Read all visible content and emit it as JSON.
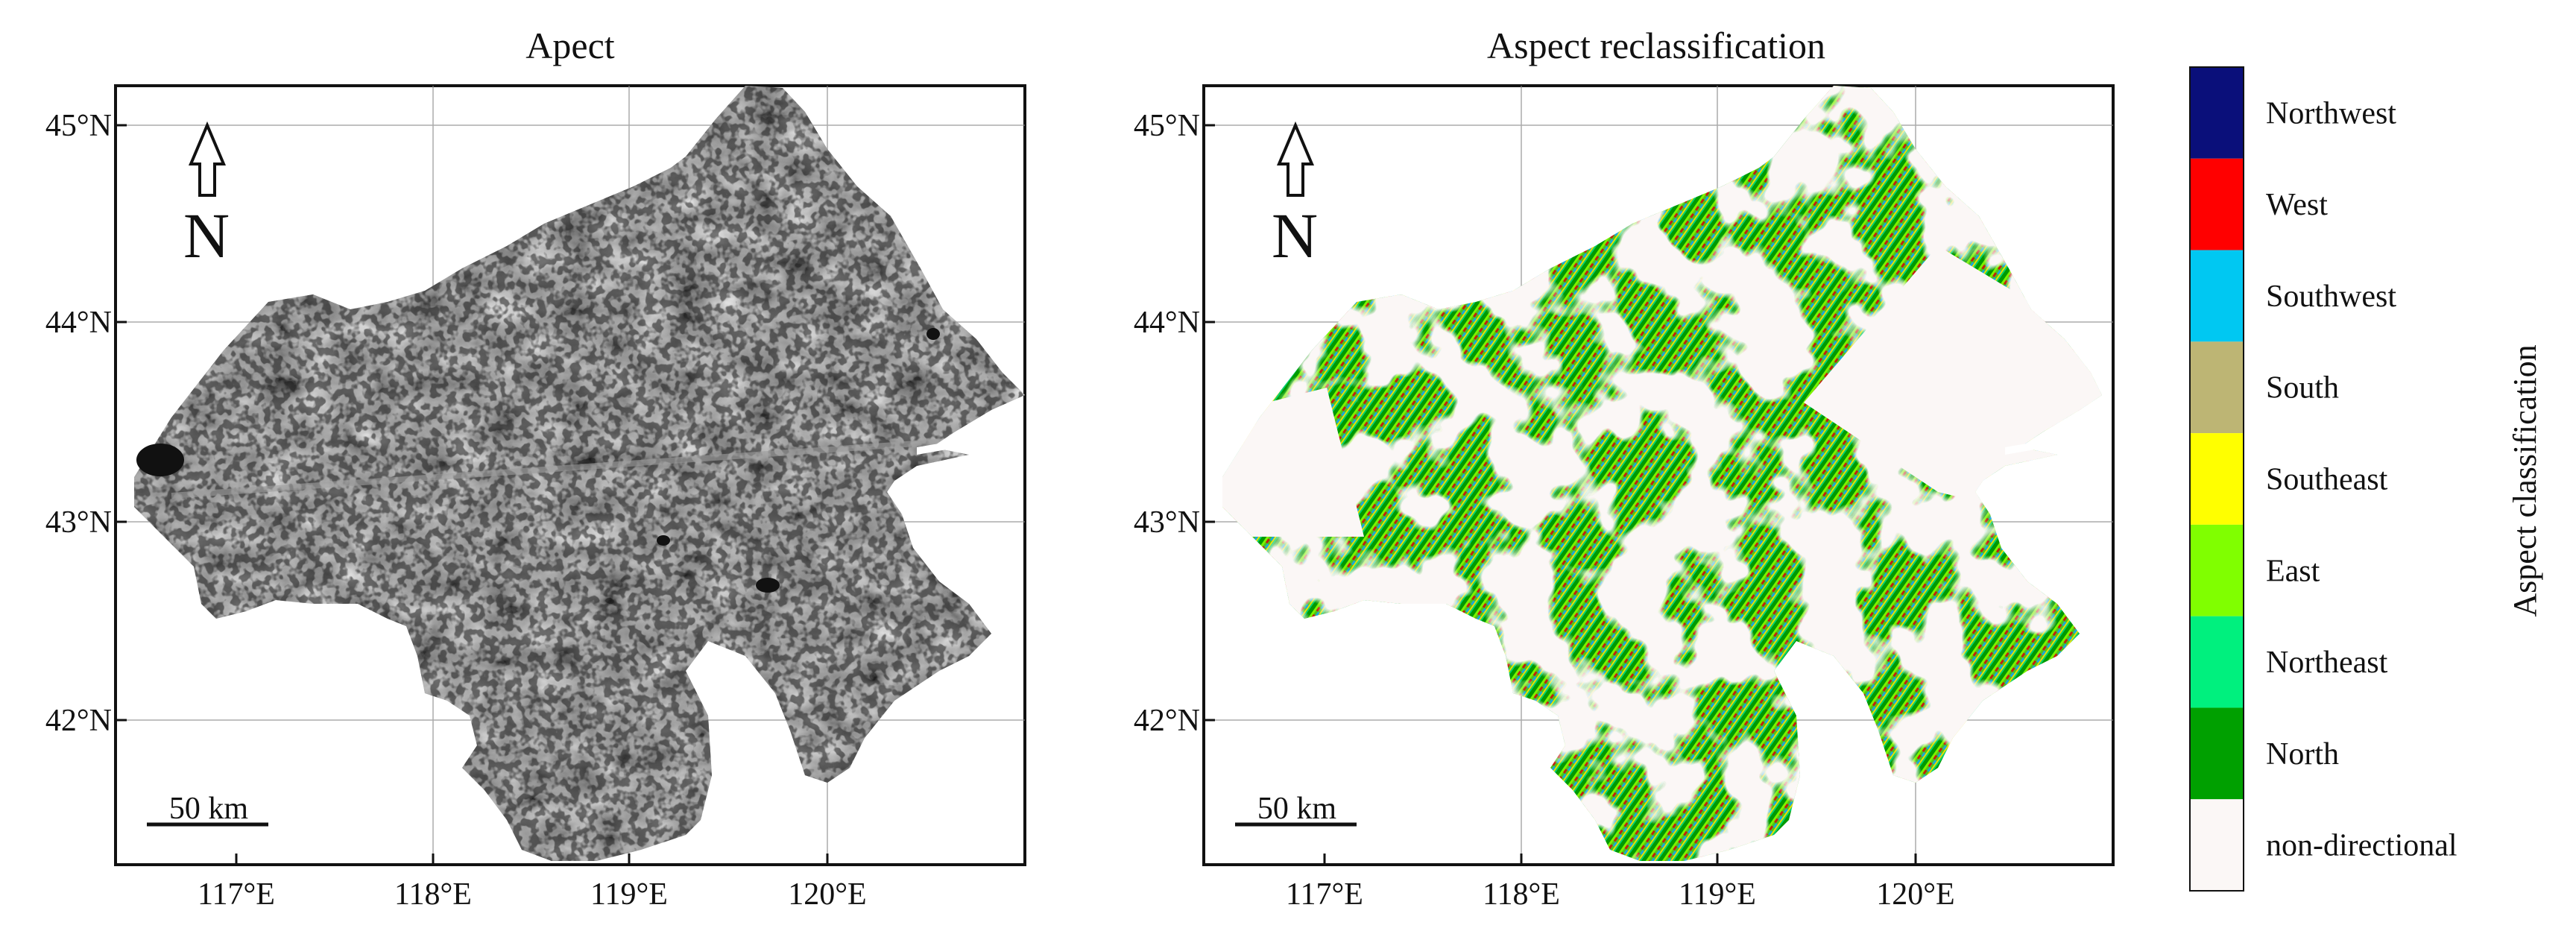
{
  "panels": [
    {
      "title": "Apect",
      "lat_labels": [
        "45°N",
        "44°N",
        "43°N",
        "42°N"
      ],
      "lon_labels": [
        "117°E",
        "118°E",
        "119°E",
        "120°E"
      ],
      "north_letter": "N",
      "scale_label": "50 km",
      "style": "grayscale-hillshade"
    },
    {
      "title": "Aspect reclassification",
      "lat_labels": [
        "45°N",
        "44°N",
        "43°N",
        "42°N"
      ],
      "lon_labels": [
        "117°E",
        "118°E",
        "119°E",
        "120°E"
      ],
      "north_letter": "N",
      "scale_label": "50 km",
      "style": "classified"
    }
  ],
  "legend": {
    "title": "Aspect classification",
    "classes": [
      {
        "label": "Northwest",
        "color": "#0a0f7a"
      },
      {
        "label": "West",
        "color": "#ff0000"
      },
      {
        "label": "Southwest",
        "color": "#00c8f2"
      },
      {
        "label": "South",
        "color": "#bdb574"
      },
      {
        "label": "Southeast",
        "color": "#ffff00"
      },
      {
        "label": "East",
        "color": "#80ff00"
      },
      {
        "label": "Northeast",
        "color": "#00f07e"
      },
      {
        "label": "North",
        "color": "#00a000"
      },
      {
        "label": "non-directional",
        "color": "#fbf7f6"
      }
    ]
  }
}
